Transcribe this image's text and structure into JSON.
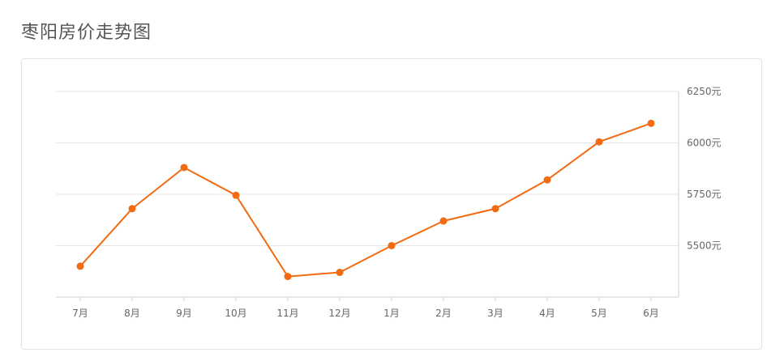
{
  "page": {
    "title": "枣阳房价走势图"
  },
  "colors": {
    "line": "#f26b12",
    "grid": "#e5e5e5",
    "axis": "#cfcfcf",
    "text": "#666666"
  },
  "chart_data": {
    "type": "line",
    "categories": [
      "7月",
      "8月",
      "9月",
      "10月",
      "11月",
      "12月",
      "1月",
      "2月",
      "3月",
      "4月",
      "5月",
      "6月"
    ],
    "values": [
      5400,
      5680,
      5880,
      5745,
      5350,
      5370,
      5500,
      5620,
      5680,
      5820,
      6005,
      6095
    ],
    "ylim": [
      5250,
      6250
    ],
    "yticks": [
      5500,
      5750,
      6000,
      6250
    ],
    "ytick_labels": [
      "5500元",
      "5750元",
      "6000元",
      "6250元"
    ],
    "y_axis_position": "right",
    "grid": true,
    "legend": "none"
  }
}
